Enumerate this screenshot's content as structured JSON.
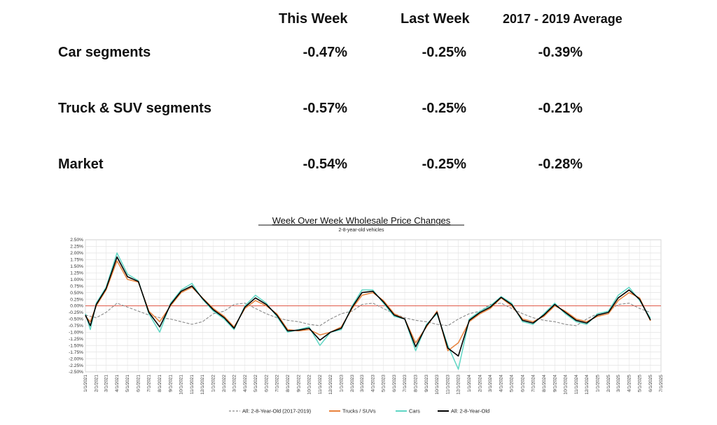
{
  "table": {
    "columns": [
      "This Week",
      "Last Week",
      "2017 - 2019 Average"
    ],
    "rows": [
      {
        "label": "Car segments",
        "values": [
          "-0.47%",
          "-0.25%",
          "-0.39%"
        ]
      },
      {
        "label": "Truck & SUV segments",
        "values": [
          "-0.57%",
          "-0.25%",
          "-0.21%"
        ]
      },
      {
        "label": "Market",
        "values": [
          "-0.54%",
          "-0.25%",
          "-0.28%"
        ]
      }
    ]
  },
  "chart_data": {
    "type": "line",
    "title": "Week Over Week Wholesale Price Changes",
    "subtitle": "2-8-year-old vehicles",
    "xlabel": "",
    "ylabel": "",
    "xlim": [
      "1/1/2021",
      "7/1/2025"
    ],
    "ylim": [
      -2.5,
      2.5
    ],
    "grid": true,
    "legend_position": "bottom",
    "x_ticks": [
      "1/1/2021",
      "2/1/2021",
      "3/1/2021",
      "4/1/2021",
      "5/1/2021",
      "6/1/2021",
      "7/1/2021",
      "8/1/2021",
      "9/1/2021",
      "10/1/2021",
      "11/1/2021",
      "12/1/2021",
      "1/1/2022",
      "2/1/2022",
      "3/1/2022",
      "4/1/2022",
      "5/1/2022",
      "6/1/2022",
      "7/1/2022",
      "8/1/2022",
      "9/1/2022",
      "10/1/2022",
      "11/1/2022",
      "12/1/2022",
      "1/1/2023",
      "2/1/2023",
      "3/1/2023",
      "4/1/2023",
      "5/1/2023",
      "6/1/2023",
      "7/1/2023",
      "8/1/2023",
      "9/1/2023",
      "10/1/2023",
      "11/1/2023",
      "12/1/2023",
      "1/1/2024",
      "2/1/2024",
      "3/1/2024",
      "4/1/2024",
      "5/1/2024",
      "6/1/2024",
      "7/1/2024",
      "8/1/2024",
      "9/1/2024",
      "10/1/2024",
      "11/1/2024",
      "12/1/2024",
      "1/1/2025",
      "2/1/2025",
      "3/1/2025",
      "4/1/2025",
      "5/1/2025",
      "6/1/2025",
      "7/1/2025"
    ],
    "y_ticks": [
      "2.50%",
      "2.25%",
      "2.00%",
      "1.75%",
      "1.50%",
      "1.25%",
      "1.00%",
      "0.75%",
      "0.50%",
      "0.25%",
      "0.00%",
      "-0.25%",
      "-0.50%",
      "-0.75%",
      "-1.00%",
      "-1.25%",
      "-1.50%",
      "-1.75%",
      "-2.00%",
      "-2.25%",
      "-2.50%"
    ],
    "series": [
      {
        "name": "All: 2-8-Year-Old (2017-2019)",
        "color": "#8a8a8a",
        "style": "dashed",
        "points": [
          [
            "1/1/2021",
            -0.35
          ],
          [
            "2/1/2021",
            -0.45
          ],
          [
            "3/1/2021",
            -0.25
          ],
          [
            "4/1/2021",
            0.1
          ],
          [
            "5/1/2021",
            -0.05
          ],
          [
            "6/1/2021",
            -0.2
          ],
          [
            "7/1/2021",
            -0.35
          ],
          [
            "8/1/2021",
            -0.45
          ],
          [
            "9/1/2021",
            -0.5
          ],
          [
            "10/1/2021",
            -0.6
          ],
          [
            "11/1/2021",
            -0.7
          ],
          [
            "12/1/2021",
            -0.6
          ],
          [
            "1/1/2022",
            -0.3
          ],
          [
            "2/1/2022",
            -0.2
          ],
          [
            "3/1/2022",
            0.05
          ],
          [
            "4/1/2022",
            0.1
          ],
          [
            "5/1/2022",
            -0.1
          ],
          [
            "6/1/2022",
            -0.3
          ],
          [
            "7/1/2022",
            -0.45
          ],
          [
            "8/1/2022",
            -0.55
          ],
          [
            "9/1/2022",
            -0.6
          ],
          [
            "10/1/2022",
            -0.7
          ],
          [
            "11/1/2022",
            -0.75
          ],
          [
            "12/1/2022",
            -0.5
          ],
          [
            "1/1/2023",
            -0.3
          ],
          [
            "2/1/2023",
            -0.2
          ],
          [
            "3/1/2023",
            0.05
          ],
          [
            "4/1/2023",
            0.1
          ],
          [
            "5/1/2023",
            -0.1
          ],
          [
            "6/1/2023",
            -0.3
          ],
          [
            "7/1/2023",
            -0.45
          ],
          [
            "8/1/2023",
            -0.55
          ],
          [
            "9/1/2023",
            -0.6
          ],
          [
            "10/1/2023",
            -0.7
          ],
          [
            "11/1/2023",
            -0.75
          ],
          [
            "12/1/2023",
            -0.5
          ],
          [
            "1/1/2024",
            -0.3
          ],
          [
            "2/1/2024",
            -0.2
          ],
          [
            "3/1/2024",
            0.05
          ],
          [
            "4/1/2024",
            0.1
          ],
          [
            "5/1/2024",
            -0.1
          ],
          [
            "6/1/2024",
            -0.3
          ],
          [
            "7/1/2024",
            -0.45
          ],
          [
            "8/1/2024",
            -0.55
          ],
          [
            "9/1/2024",
            -0.6
          ],
          [
            "10/1/2024",
            -0.7
          ],
          [
            "11/1/2024",
            -0.75
          ],
          [
            "12/1/2024",
            -0.5
          ],
          [
            "1/1/2025",
            -0.3
          ],
          [
            "2/1/2025",
            -0.2
          ],
          [
            "3/1/2025",
            0.05
          ],
          [
            "4/1/2025",
            0.1
          ],
          [
            "5/1/2025",
            -0.1
          ],
          [
            "6/1/2025",
            -0.25
          ]
        ]
      },
      {
        "name": "Trucks / SUVs",
        "color": "#e8823c",
        "style": "solid",
        "points": [
          [
            "1/1/2021",
            -0.4
          ],
          [
            "1/15/2021",
            -0.6
          ],
          [
            "2/1/2021",
            0.0
          ],
          [
            "3/1/2021",
            0.6
          ],
          [
            "4/1/2021",
            1.7
          ],
          [
            "5/1/2021",
            1.0
          ],
          [
            "6/1/2021",
            0.9
          ],
          [
            "7/1/2021",
            -0.2
          ],
          [
            "8/1/2021",
            -0.6
          ],
          [
            "9/1/2021",
            0.0
          ],
          [
            "10/1/2021",
            0.5
          ],
          [
            "11/1/2021",
            0.7
          ],
          [
            "12/1/2021",
            0.3
          ],
          [
            "1/1/2022",
            -0.1
          ],
          [
            "2/1/2022",
            -0.4
          ],
          [
            "3/1/2022",
            -0.8
          ],
          [
            "4/1/2022",
            -0.1
          ],
          [
            "5/1/2022",
            0.2
          ],
          [
            "6/1/2022",
            0.0
          ],
          [
            "7/1/2022",
            -0.3
          ],
          [
            "8/1/2022",
            -0.9
          ],
          [
            "9/1/2022",
            -0.95
          ],
          [
            "10/1/2022",
            -0.9
          ],
          [
            "11/1/2022",
            -1.1
          ],
          [
            "12/1/2022",
            -1.0
          ],
          [
            "1/1/2023",
            -0.8
          ],
          [
            "2/1/2023",
            -0.1
          ],
          [
            "3/1/2023",
            0.4
          ],
          [
            "4/1/2023",
            0.5
          ],
          [
            "5/1/2023",
            0.2
          ],
          [
            "6/1/2023",
            -0.3
          ],
          [
            "7/1/2023",
            -0.5
          ],
          [
            "8/1/2023",
            -1.4
          ],
          [
            "9/1/2023",
            -0.8
          ],
          [
            "10/1/2023",
            -0.2
          ],
          [
            "11/1/2023",
            -1.7
          ],
          [
            "12/1/2023",
            -1.4
          ],
          [
            "1/1/2024",
            -0.6
          ],
          [
            "2/1/2024",
            -0.3
          ],
          [
            "3/1/2024",
            -0.1
          ],
          [
            "4/1/2024",
            0.3
          ],
          [
            "5/1/2024",
            0.0
          ],
          [
            "6/1/2024",
            -0.5
          ],
          [
            "7/1/2024",
            -0.6
          ],
          [
            "8/1/2024",
            -0.4
          ],
          [
            "9/1/2024",
            0.0
          ],
          [
            "10/1/2024",
            -0.2
          ],
          [
            "11/1/2024",
            -0.5
          ],
          [
            "12/1/2024",
            -0.6
          ],
          [
            "1/1/2025",
            -0.4
          ],
          [
            "2/1/2025",
            -0.3
          ],
          [
            "3/1/2025",
            0.2
          ],
          [
            "4/1/2025",
            0.5
          ],
          [
            "5/1/2025",
            0.3
          ],
          [
            "6/1/2025",
            -0.57
          ]
        ]
      },
      {
        "name": "Cars",
        "color": "#5fd6c4",
        "style": "solid",
        "points": [
          [
            "1/1/2021",
            -0.3
          ],
          [
            "1/15/2021",
            -0.9
          ],
          [
            "2/1/2021",
            0.1
          ],
          [
            "3/1/2021",
            0.7
          ],
          [
            "4/1/2021",
            2.0
          ],
          [
            "5/1/2021",
            1.2
          ],
          [
            "6/1/2021",
            0.95
          ],
          [
            "7/1/2021",
            -0.3
          ],
          [
            "8/1/2021",
            -1.0
          ],
          [
            "9/1/2021",
            0.1
          ],
          [
            "10/1/2021",
            0.6
          ],
          [
            "11/1/2021",
            0.85
          ],
          [
            "12/1/2021",
            0.25
          ],
          [
            "1/1/2022",
            -0.2
          ],
          [
            "2/1/2022",
            -0.5
          ],
          [
            "3/1/2022",
            -0.9
          ],
          [
            "4/1/2022",
            0.0
          ],
          [
            "5/1/2022",
            0.4
          ],
          [
            "6/1/2022",
            0.1
          ],
          [
            "7/1/2022",
            -0.4
          ],
          [
            "8/1/2022",
            -1.0
          ],
          [
            "9/1/2022",
            -0.9
          ],
          [
            "10/1/2022",
            -0.8
          ],
          [
            "11/1/2022",
            -1.5
          ],
          [
            "12/1/2022",
            -1.0
          ],
          [
            "1/1/2023",
            -0.9
          ],
          [
            "2/1/2023",
            0.0
          ],
          [
            "3/1/2023",
            0.6
          ],
          [
            "4/1/2023",
            0.6
          ],
          [
            "5/1/2023",
            0.1
          ],
          [
            "6/1/2023",
            -0.4
          ],
          [
            "7/1/2023",
            -0.5
          ],
          [
            "8/1/2023",
            -1.7
          ],
          [
            "9/1/2023",
            -0.7
          ],
          [
            "10/1/2023",
            -0.3
          ],
          [
            "11/1/2023",
            -1.5
          ],
          [
            "12/1/2023",
            -2.4
          ],
          [
            "1/1/2024",
            -0.5
          ],
          [
            "2/1/2024",
            -0.2
          ],
          [
            "3/1/2024",
            0.0
          ],
          [
            "4/1/2024",
            0.35
          ],
          [
            "5/1/2024",
            0.1
          ],
          [
            "6/1/2024",
            -0.6
          ],
          [
            "7/1/2024",
            -0.7
          ],
          [
            "8/1/2024",
            -0.3
          ],
          [
            "9/1/2024",
            0.1
          ],
          [
            "10/1/2024",
            -0.3
          ],
          [
            "11/1/2024",
            -0.6
          ],
          [
            "12/1/2024",
            -0.7
          ],
          [
            "1/1/2025",
            -0.3
          ],
          [
            "2/1/2025",
            -0.2
          ],
          [
            "3/1/2025",
            0.4
          ],
          [
            "4/1/2025",
            0.7
          ],
          [
            "5/1/2025",
            0.2
          ],
          [
            "6/1/2025",
            -0.47
          ]
        ]
      },
      {
        "name": "All: 2-8-Year-Old",
        "color": "#000000",
        "style": "solid",
        "points": [
          [
            "1/1/2021",
            -0.35
          ],
          [
            "1/15/2021",
            -0.75
          ],
          [
            "2/1/2021",
            0.05
          ],
          [
            "3/1/2021",
            0.65
          ],
          [
            "4/1/2021",
            1.85
          ],
          [
            "5/1/2021",
            1.1
          ],
          [
            "6/1/2021",
            0.92
          ],
          [
            "7/1/2021",
            -0.25
          ],
          [
            "8/1/2021",
            -0.8
          ],
          [
            "9/1/2021",
            0.05
          ],
          [
            "10/1/2021",
            0.55
          ],
          [
            "11/1/2021",
            0.75
          ],
          [
            "12/1/2021",
            0.28
          ],
          [
            "1/1/2022",
            -0.15
          ],
          [
            "2/1/2022",
            -0.45
          ],
          [
            "3/1/2022",
            -0.85
          ],
          [
            "4/1/2022",
            -0.05
          ],
          [
            "5/1/2022",
            0.3
          ],
          [
            "6/1/2022",
            0.05
          ],
          [
            "7/1/2022",
            -0.35
          ],
          [
            "8/1/2022",
            -0.95
          ],
          [
            "9/1/2022",
            -0.92
          ],
          [
            "10/1/2022",
            -0.85
          ],
          [
            "11/1/2022",
            -1.3
          ],
          [
            "12/1/2022",
            -1.0
          ],
          [
            "1/1/2023",
            -0.85
          ],
          [
            "2/1/2023",
            -0.05
          ],
          [
            "3/1/2023",
            0.5
          ],
          [
            "4/1/2023",
            0.55
          ],
          [
            "5/1/2023",
            0.15
          ],
          [
            "6/1/2023",
            -0.35
          ],
          [
            "7/1/2023",
            -0.5
          ],
          [
            "8/1/2023",
            -1.55
          ],
          [
            "9/1/2023",
            -0.75
          ],
          [
            "10/1/2023",
            -0.25
          ],
          [
            "11/1/2023",
            -1.6
          ],
          [
            "12/1/2023",
            -1.9
          ],
          [
            "1/1/2024",
            -0.55
          ],
          [
            "2/1/2024",
            -0.25
          ],
          [
            "3/1/2024",
            -0.05
          ],
          [
            "4/1/2024",
            0.32
          ],
          [
            "5/1/2024",
            0.05
          ],
          [
            "6/1/2024",
            -0.55
          ],
          [
            "7/1/2024",
            -0.65
          ],
          [
            "8/1/2024",
            -0.35
          ],
          [
            "9/1/2024",
            0.05
          ],
          [
            "10/1/2024",
            -0.25
          ],
          [
            "11/1/2024",
            -0.55
          ],
          [
            "12/1/2024",
            -0.65
          ],
          [
            "1/1/2025",
            -0.35
          ],
          [
            "2/1/2025",
            -0.25
          ],
          [
            "3/1/2025",
            0.3
          ],
          [
            "4/1/2025",
            0.6
          ],
          [
            "5/1/2025",
            0.25
          ],
          [
            "6/1/2025",
            -0.54
          ]
        ]
      }
    ],
    "reference_line": {
      "y": 0,
      "color": "#e05a4a"
    }
  }
}
